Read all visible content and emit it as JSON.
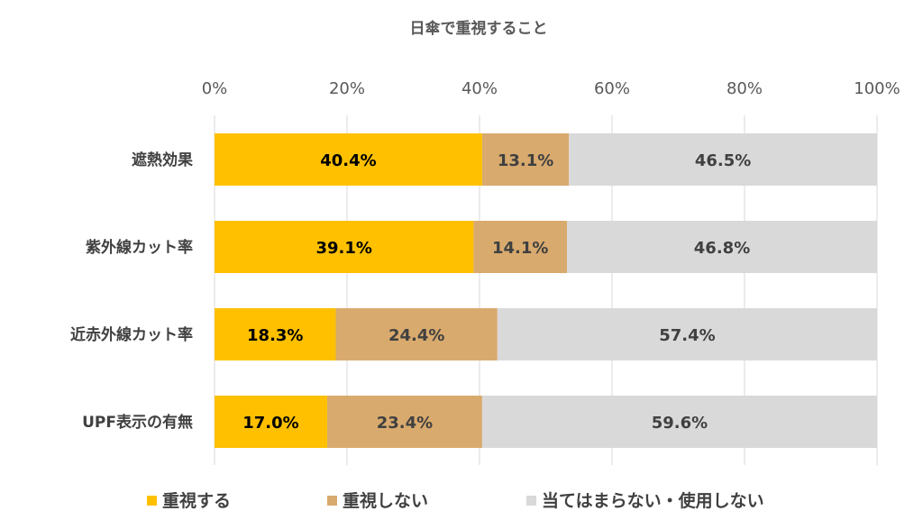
{
  "chart_data": {
    "type": "bar",
    "orientation": "horizontal",
    "stacked": "percent",
    "title": "日傘で重視すること",
    "categories": [
      "遮熱効果",
      "紫外線カット率",
      "近赤外線カット率",
      "UPF表示の有無"
    ],
    "series": [
      {
        "name": "重視する",
        "color": "#FFC000",
        "label_color": "#000000",
        "values": [
          40.4,
          39.1,
          18.3,
          17.0
        ],
        "labels": [
          "40.4%",
          "39.1%",
          "18.3%",
          "17.0%"
        ]
      },
      {
        "name": "重視しない",
        "color": "#D9AA6E",
        "label_color": "#404040",
        "values": [
          13.1,
          14.1,
          24.4,
          23.4
        ],
        "labels": [
          "13.1%",
          "14.1%",
          "24.4%",
          "23.4%"
        ]
      },
      {
        "name": "当てはまらない・使用しない",
        "color": "#D9D9D9",
        "label_color": "#404040",
        "values": [
          46.5,
          46.8,
          57.4,
          59.6
        ],
        "labels": [
          "46.5%",
          "46.8%",
          "57.4%",
          "59.6%"
        ]
      }
    ],
    "xlim": [
      0,
      100
    ],
    "xticks": [
      0,
      20,
      40,
      60,
      80,
      100
    ],
    "xtick_labels": [
      "0%",
      "20%",
      "40%",
      "60%",
      "80%",
      "100%"
    ],
    "xaxis_position": "top",
    "grid": true,
    "legend": "bottom"
  }
}
